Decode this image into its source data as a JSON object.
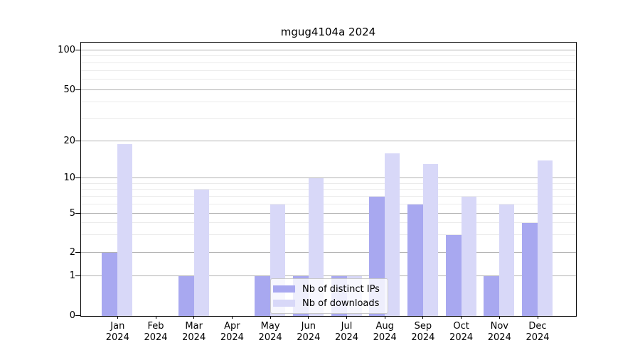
{
  "chart_data": {
    "type": "bar",
    "title": "mgug4104a 2024",
    "categories": [
      "Jan",
      "Feb",
      "Mar",
      "Apr",
      "May",
      "Jun",
      "Jul",
      "Aug",
      "Sep",
      "Oct",
      "Nov",
      "Dec"
    ],
    "category_year": "2024",
    "series": [
      {
        "name": "Nb of distinct IPs",
        "color": "#a8a8f0",
        "values": [
          2,
          0,
          1,
          0,
          1,
          1,
          1,
          7,
          6,
          3,
          1,
          4
        ]
      },
      {
        "name": "Nb of downloads",
        "color": "#d8d8f8",
        "values": [
          19,
          0,
          8,
          0,
          6,
          10,
          1,
          16,
          13,
          7,
          6,
          14
        ]
      }
    ],
    "y_axis": {
      "ticks": [
        0,
        1,
        2,
        5,
        10,
        20,
        50,
        100
      ],
      "minor_gridlines": [
        3,
        4,
        6,
        7,
        8,
        9,
        30,
        40,
        60,
        70,
        80,
        90
      ],
      "scale": "log-like",
      "range": [
        0,
        100
      ]
    },
    "legend": {
      "position": "lower-center-inside"
    },
    "colors": {
      "major_grid": "#b2b2b2",
      "minor_grid": "#ebebeb",
      "frame": "#000000"
    },
    "grid": true
  }
}
